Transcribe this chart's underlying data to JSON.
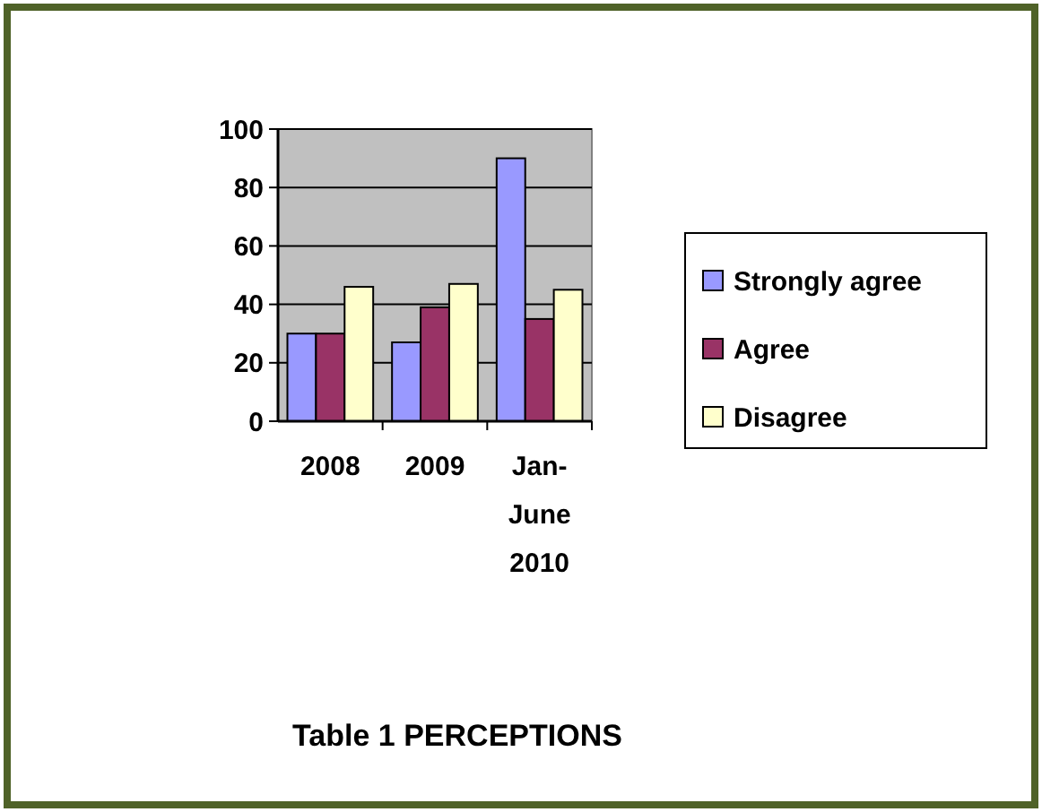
{
  "chart_data": {
    "type": "bar",
    "title": "Table 1 PERCEPTIONS",
    "categories": [
      "2008",
      "2009",
      "Jan-June 2010"
    ],
    "series": [
      {
        "name": "Strongly agree",
        "color": "#9999ff",
        "values": [
          30,
          27,
          90
        ]
      },
      {
        "name": "Agree",
        "color": "#993366",
        "values": [
          30,
          39,
          35
        ]
      },
      {
        "name": "Disagree",
        "color": "#ffffcc",
        "values": [
          46,
          47,
          45
        ]
      }
    ],
    "ylim": [
      0,
      100
    ],
    "yticks": [
      0,
      20,
      40,
      60,
      80,
      100
    ],
    "grid": "y",
    "legend": "right"
  }
}
